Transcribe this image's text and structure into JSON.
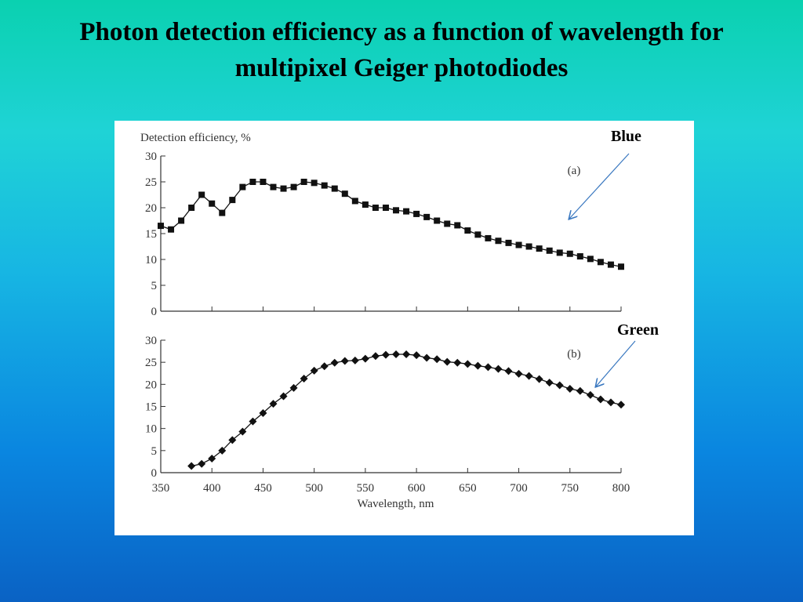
{
  "slide": {
    "title_line1": "Photon detection efficiency as a function of wavelength for",
    "title_line2": "multipixel Geiger photodiodes"
  },
  "annotations": {
    "blue_label": "Blue",
    "green_label": "Green",
    "arrow_color": "#3a78c0"
  },
  "chart_data": [
    {
      "type": "scatter",
      "panel_label": "(a)",
      "ylabel": "Detection efficiency, %",
      "xlabel": "",
      "xlim": [
        350,
        800
      ],
      "ylim": [
        0,
        30
      ],
      "yticks": [
        0,
        5,
        10,
        15,
        20,
        25,
        30
      ],
      "xticks": [
        350,
        400,
        450,
        500,
        550,
        600,
        650,
        700,
        750,
        800
      ],
      "show_x_tick_labels": false,
      "marker": "square",
      "grid": false,
      "series": [
        {
          "x": [
            350,
            360,
            370,
            380,
            390,
            400,
            410,
            420,
            430,
            440,
            450,
            460,
            470,
            480,
            490,
            500,
            510,
            520,
            530,
            540,
            550,
            560,
            570,
            580,
            590,
            600,
            610,
            620,
            630,
            640,
            650,
            660,
            670,
            680,
            690,
            700,
            710,
            720,
            730,
            740,
            750,
            760,
            770,
            780,
            790,
            800
          ],
          "y": [
            16.5,
            15.8,
            17.5,
            20,
            22.5,
            20.8,
            19,
            21.5,
            24,
            25,
            25,
            24,
            23.7,
            24,
            25,
            24.8,
            24.3,
            23.7,
            22.7,
            21.3,
            20.6,
            20,
            20,
            19.5,
            19.3,
            18.8,
            18.2,
            17.5,
            16.9,
            16.6,
            15.6,
            14.8,
            14.1,
            13.6,
            13.2,
            12.8,
            12.5,
            12.1,
            11.7,
            11.3,
            11.1,
            10.6,
            10.1,
            9.5,
            9,
            8.6
          ]
        }
      ]
    },
    {
      "type": "scatter",
      "panel_label": "(b)",
      "ylabel": "",
      "xlabel": "Wavelength, nm",
      "xlim": [
        350,
        800
      ],
      "ylim": [
        0,
        30
      ],
      "yticks": [
        0,
        5,
        10,
        15,
        20,
        25,
        30
      ],
      "xticks": [
        350,
        400,
        450,
        500,
        550,
        600,
        650,
        700,
        750,
        800
      ],
      "show_x_tick_labels": true,
      "marker": "diamond",
      "grid": false,
      "series": [
        {
          "x": [
            380,
            390,
            400,
            410,
            420,
            430,
            440,
            450,
            460,
            470,
            480,
            490,
            500,
            510,
            520,
            530,
            540,
            550,
            560,
            570,
            580,
            590,
            600,
            610,
            620,
            630,
            640,
            650,
            660,
            670,
            680,
            690,
            700,
            710,
            720,
            730,
            740,
            750,
            760,
            770,
            780,
            790,
            800
          ],
          "y": [
            1.5,
            2,
            3.2,
            5,
            7.4,
            9.3,
            11.6,
            13.5,
            15.6,
            17.3,
            19.2,
            21.3,
            23.1,
            24.1,
            24.9,
            25.3,
            25.4,
            25.8,
            26.4,
            26.7,
            26.8,
            26.8,
            26.6,
            26,
            25.7,
            25.1,
            24.9,
            24.6,
            24.2,
            23.9,
            23.5,
            23,
            22.4,
            21.9,
            21.2,
            20.4,
            19.8,
            19,
            18.5,
            17.6,
            16.6,
            15.9,
            15.4
          ]
        }
      ]
    }
  ]
}
